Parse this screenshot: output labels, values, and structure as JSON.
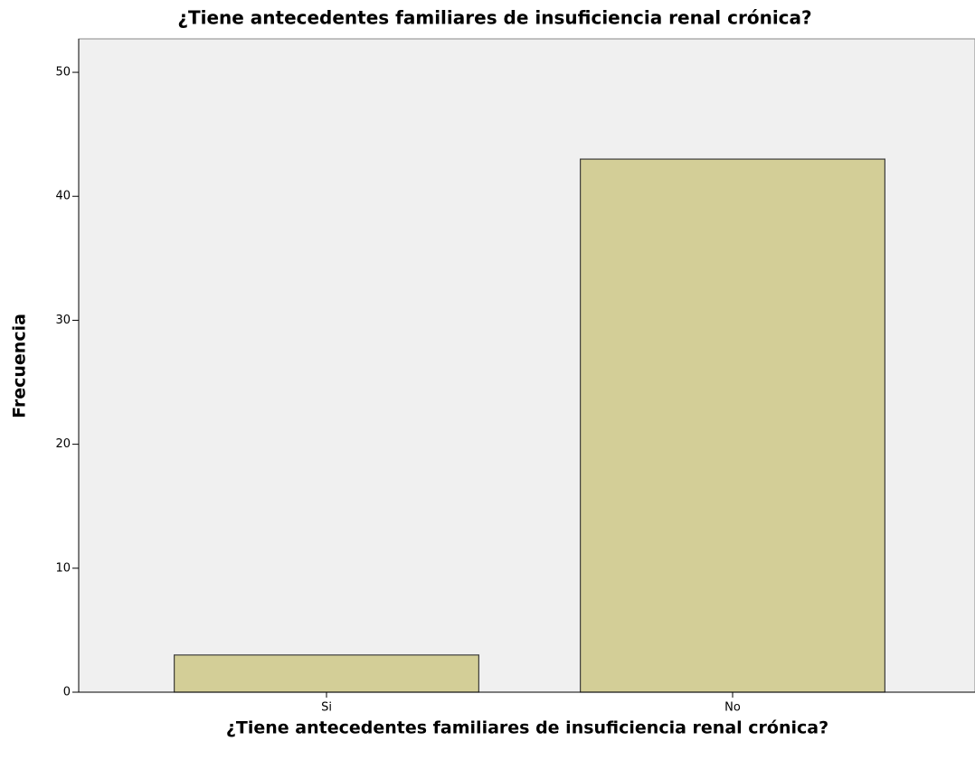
{
  "chart_data": {
    "type": "bar",
    "title": "¿Tiene antecedentes familiares de insuficiencia renal crónica?",
    "x_label": "¿Tiene antecedentes familiares de insuficiencia renal crónica?",
    "y_label": "Frecuencia",
    "categories": [
      "Si",
      "No"
    ],
    "values": [
      3,
      43
    ],
    "color": "#d3ce97",
    "ylim": [
      0,
      52.7
    ],
    "yticks": [
      0,
      10,
      20,
      30,
      40,
      50
    ],
    "grid": false
  }
}
